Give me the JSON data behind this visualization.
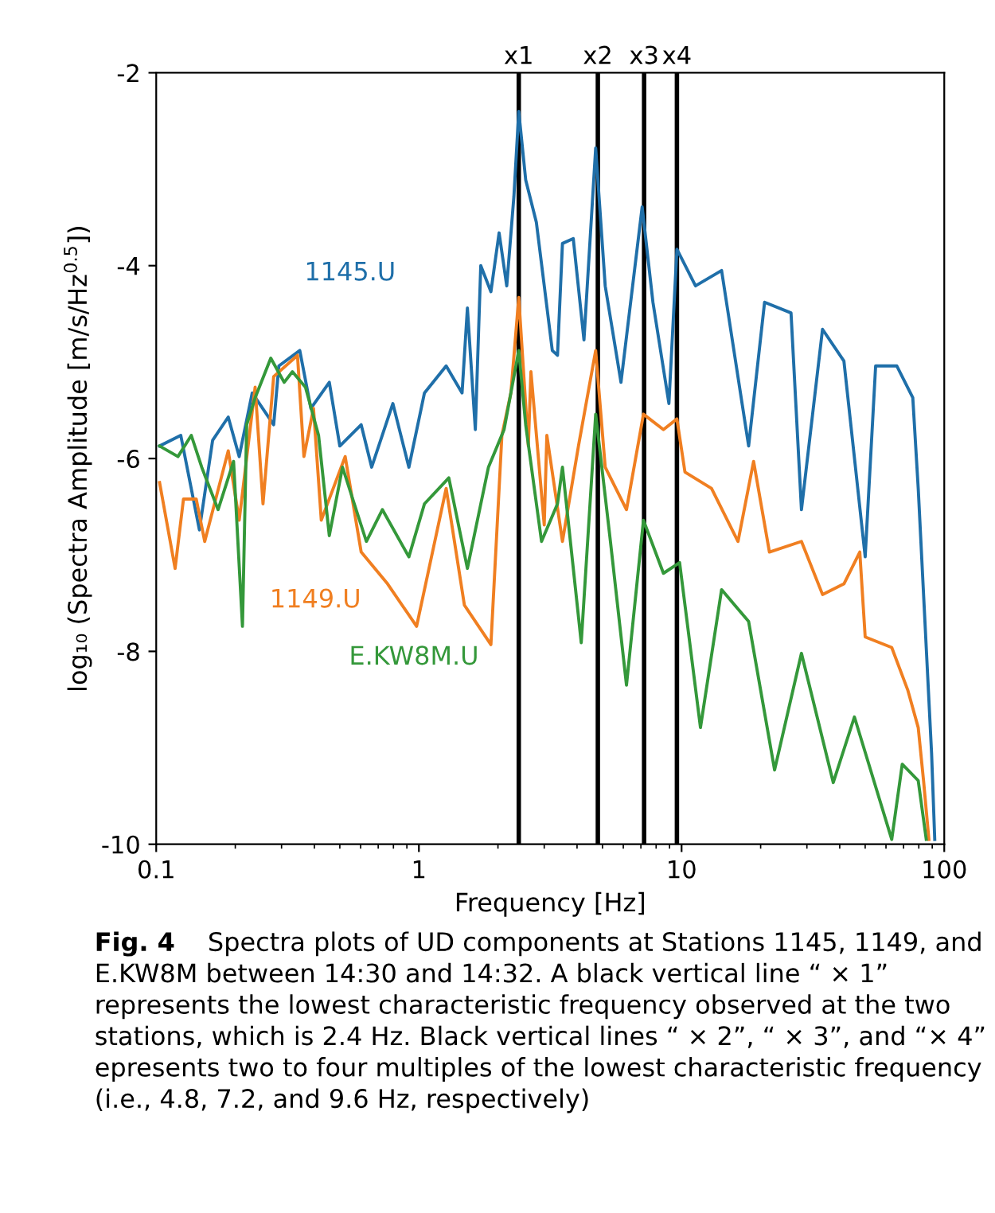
{
  "chart_data": {
    "type": "line",
    "xlabel": "Frequency [Hz]",
    "ylabel": "log₁₀ (Spectra Amplitude [m/s/Hz$^{0.5}$])",
    "log": "x",
    "xlim": [
      0.1,
      100
    ],
    "xticks": [
      0.1,
      1,
      10,
      100
    ],
    "ylim": [
      -10,
      -2
    ],
    "yticks": [
      -2,
      -4,
      -6,
      -8,
      -10
    ],
    "grid": false,
    "legend": false,
    "marker": "none",
    "line_style": "solid",
    "series": [
      {
        "name": "1145.U",
        "color": "#1f6fa9",
        "x": [
          0.103,
          0.124,
          0.146,
          0.164,
          0.188,
          0.207,
          0.232,
          0.28,
          0.293,
          0.352,
          0.388,
          0.456,
          0.5,
          0.603,
          0.661,
          0.796,
          0.916,
          1.05,
          1.27,
          1.46,
          1.53,
          1.64,
          1.72,
          1.88,
          2.02,
          2.16,
          2.3,
          2.4,
          2.55,
          2.8,
          3.22,
          3.37,
          3.52,
          3.87,
          4.25,
          4.71,
          5.12,
          5.88,
          7.08,
          7.78,
          8.95,
          9.6,
          11.3,
          14.2,
          18.0,
          20.7,
          26.1,
          28.6,
          34.4,
          41.5,
          50.0,
          54.8,
          66.0,
          75.9,
          79.6,
          85.4,
          89.5,
          92.0
        ],
        "values": [
          -5.87,
          -5.76,
          -6.74,
          -5.81,
          -5.57,
          -5.98,
          -5.32,
          -5.65,
          -5.04,
          -4.88,
          -5.48,
          -5.21,
          -5.87,
          -5.65,
          -6.09,
          -5.43,
          -6.09,
          -5.32,
          -5.04,
          -5.32,
          -4.44,
          -5.7,
          -4.0,
          -4.27,
          -3.66,
          -4.21,
          -3.28,
          -2.4,
          -3.11,
          -3.55,
          -4.88,
          -4.93,
          -3.77,
          -3.72,
          -4.77,
          -2.78,
          -4.21,
          -5.21,
          -3.39,
          -4.38,
          -5.43,
          -3.83,
          -4.21,
          -4.05,
          -5.87,
          -4.38,
          -4.49,
          -6.53,
          -4.66,
          -4.99,
          -7.02,
          -5.04,
          -5.04,
          -5.37,
          -6.31,
          -7.96,
          -9.06,
          -9.95
        ]
      },
      {
        "name": "1149.U",
        "color": "#f07f21",
        "x": [
          0.103,
          0.118,
          0.127,
          0.142,
          0.153,
          0.188,
          0.207,
          0.238,
          0.255,
          0.28,
          0.345,
          0.365,
          0.397,
          0.425,
          0.524,
          0.603,
          0.76,
          0.98,
          1.27,
          1.49,
          1.88,
          2.07,
          2.24,
          2.4,
          2.61,
          2.67,
          3.0,
          3.07,
          3.52,
          4.05,
          4.71,
          5.12,
          6.17,
          7.16,
          8.53,
          9.6,
          10.3,
          13.0,
          16.4,
          18.8,
          21.6,
          28.6,
          34.4,
          41.5,
          47.7,
          50.0,
          63.1,
          72.6,
          79.6,
          83.4,
          87.4
        ],
        "values": [
          -6.25,
          -7.14,
          -6.42,
          -6.42,
          -6.86,
          -5.92,
          -6.64,
          -5.26,
          -6.47,
          -5.15,
          -4.93,
          -5.98,
          -5.48,
          -6.64,
          -5.98,
          -6.97,
          -7.3,
          -7.74,
          -6.31,
          -7.52,
          -7.93,
          -5.76,
          -5.32,
          -4.33,
          -5.87,
          -5.1,
          -6.69,
          -5.76,
          -6.86,
          -5.87,
          -4.88,
          -6.09,
          -6.53,
          -5.54,
          -5.7,
          -5.59,
          -6.14,
          -6.31,
          -6.86,
          -6.03,
          -6.97,
          -6.86,
          -7.41,
          -7.3,
          -6.97,
          -7.85,
          -7.96,
          -8.4,
          -8.79,
          -9.34,
          -9.95
        ]
      },
      {
        "name": "E.KW8M.U",
        "color": "#34983a",
        "x": [
          0.103,
          0.121,
          0.136,
          0.149,
          0.172,
          0.197,
          0.213,
          0.221,
          0.238,
          0.273,
          0.307,
          0.33,
          0.37,
          0.415,
          0.456,
          0.512,
          0.631,
          0.726,
          0.916,
          1.05,
          1.3,
          1.53,
          1.84,
          2.11,
          2.4,
          2.55,
          2.93,
          3.37,
          3.52,
          4.15,
          4.71,
          5.36,
          6.17,
          7.16,
          8.53,
          9.83,
          11.8,
          14.2,
          18.0,
          22.6,
          28.6,
          37.8,
          45.5,
          63.1,
          69.2,
          79.6,
          85.4
        ],
        "values": [
          -5.87,
          -5.98,
          -5.76,
          -6.09,
          -6.53,
          -6.03,
          -7.74,
          -5.65,
          -5.37,
          -4.96,
          -5.21,
          -5.1,
          -5.26,
          -5.76,
          -6.8,
          -6.09,
          -6.86,
          -6.53,
          -7.02,
          -6.47,
          -6.2,
          -7.14,
          -6.09,
          -5.7,
          -4.88,
          -5.65,
          -6.86,
          -6.47,
          -6.09,
          -7.91,
          -5.54,
          -6.86,
          -8.35,
          -6.64,
          -7.19,
          -7.08,
          -8.79,
          -7.36,
          -7.69,
          -9.23,
          -8.02,
          -9.36,
          -8.68,
          -9.95,
          -9.17,
          -9.34,
          -9.95
        ]
      }
    ],
    "ref_lines": [
      {
        "axis": "x",
        "value": 2.4,
        "label": "x1",
        "color": "#000000"
      },
      {
        "axis": "x",
        "value": 4.8,
        "label": "x2",
        "color": "#000000"
      },
      {
        "axis": "x",
        "value": 7.2,
        "label": "x3",
        "color": "#000000"
      },
      {
        "axis": "x",
        "value": 9.6,
        "label": "x4",
        "color": "#000000"
      }
    ],
    "annotations": [
      "Fig. 4",
      "Spectra plots of UD components at Stations 1145, 1149, and E.KW8M between 14:30 and 14:32. A black vertical line “ × 1” represents the lowest characteristic frequency observed at the two stations, which is 2.4 Hz. Black vertical lines “ × 2”, “ × 3”, and “× 4” epresents two to four multiples of the lowest characteristic frequency (i.e., 4.8, 7.2, and 9.6 Hz, respectively)"
    ]
  }
}
